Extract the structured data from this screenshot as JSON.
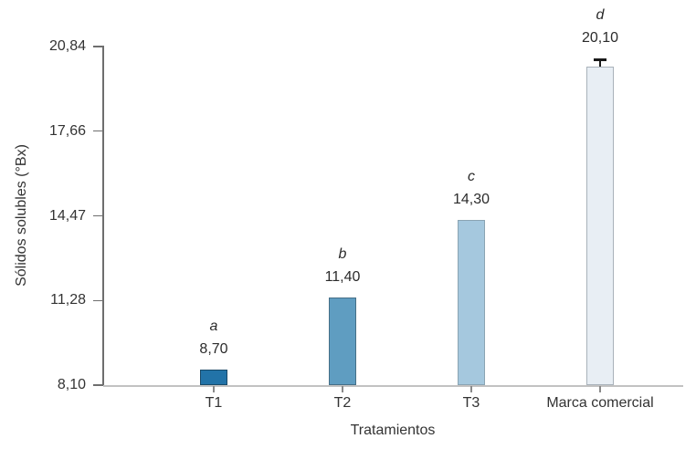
{
  "chart_data": {
    "type": "bar",
    "title": "",
    "xlabel": "Tratamientos",
    "ylabel": "Sólidos solubles (°Bx)",
    "categories": [
      "T1",
      "T2",
      "T3",
      "Marca comercial"
    ],
    "values": [
      8.7,
      11.4,
      14.3,
      20.1
    ],
    "value_labels": [
      "8,70",
      "11,40",
      "14,30",
      "20,10"
    ],
    "significance_letters": [
      "a",
      "b",
      "c",
      "d"
    ],
    "error_bars": [
      0,
      0,
      0,
      0.25
    ],
    "bar_fill_colors": [
      "#2273a8",
      "#5f9dc1",
      "#a5c8de",
      "#e8eef4"
    ],
    "bar_border_colors": [
      "#1a4a69",
      "#456f87",
      "#8aa4b3",
      "#a9b2ba"
    ],
    "y_ticks": [
      8.1,
      11.28,
      14.47,
      17.66,
      20.84
    ],
    "y_tick_labels": [
      "8,10",
      "11,28",
      "14,47",
      "17,66",
      "20,84"
    ],
    "ylim": [
      8.1,
      20.84
    ],
    "grid": false,
    "legend": false,
    "axis_color": "#6e6e6e",
    "baseline_color": "#c2c2c2",
    "text_color": "#333333",
    "error_bar_color": "#1a1a1a"
  }
}
